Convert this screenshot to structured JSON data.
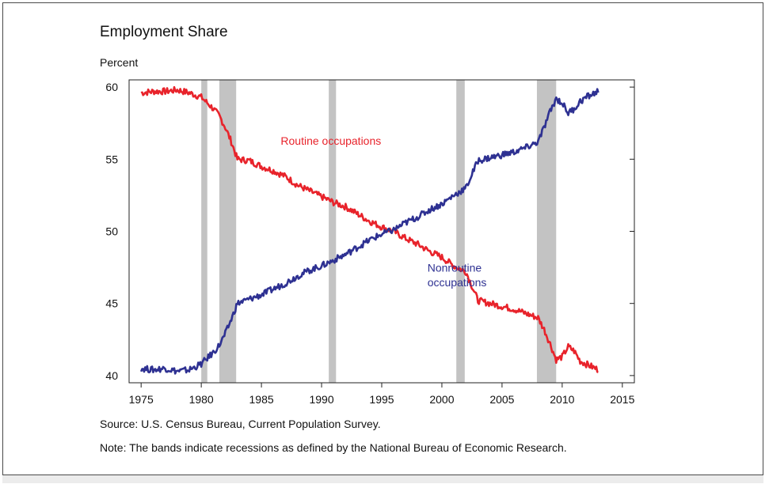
{
  "chart_data": {
    "type": "line",
    "title": "Employment Share",
    "ylabel": "Percent",
    "xlabel": "",
    "xlim": [
      1974,
      2016
    ],
    "ylim": [
      39.5,
      60.5
    ],
    "xticks": [
      1975,
      1980,
      1985,
      1990,
      1995,
      2000,
      2005,
      2010,
      2015
    ],
    "yticks": [
      40,
      45,
      50,
      55,
      60
    ],
    "recessions": [
      [
        1980.0,
        1980.5
      ],
      [
        1981.5,
        1982.9
      ],
      [
        1990.6,
        1991.2
      ],
      [
        2001.2,
        2001.9
      ],
      [
        2007.9,
        2009.5
      ]
    ],
    "series": [
      {
        "name": "Routine occupations",
        "color": "#e8232b",
        "x": [
          1975.0,
          1976.0,
          1977.0,
          1978.0,
          1979.0,
          1980.0,
          1980.5,
          1981.0,
          1981.5,
          1982.0,
          1982.5,
          1983.0,
          1984.0,
          1985.0,
          1986.0,
          1987.0,
          1988.0,
          1989.0,
          1990.0,
          1991.0,
          1992.0,
          1993.0,
          1994.0,
          1995.0,
          1996.0,
          1997.0,
          1998.0,
          1999.0,
          2000.0,
          2001.0,
          2002.0,
          2003.0,
          2004.0,
          2005.0,
          2006.0,
          2007.0,
          2008.0,
          2008.5,
          2009.0,
          2009.5,
          2010.0,
          2010.5,
          2011.0,
          2011.5,
          2012.0,
          2012.5,
          2013.0
        ],
        "values": [
          59.6,
          59.7,
          59.7,
          59.8,
          59.6,
          59.3,
          58.9,
          58.5,
          58.0,
          57.2,
          56.2,
          55.0,
          54.9,
          54.5,
          54.2,
          53.8,
          53.2,
          52.8,
          52.4,
          52.0,
          51.7,
          51.2,
          50.7,
          50.3,
          50.0,
          49.5,
          49.1,
          48.6,
          48.2,
          47.6,
          47.2,
          45.2,
          45.0,
          44.8,
          44.6,
          44.3,
          44.0,
          43.2,
          42.2,
          41.1,
          41.3,
          42.0,
          41.7,
          41.0,
          40.8,
          40.6,
          40.4
        ]
      },
      {
        "name": "Nonroutine occupations",
        "color": "#2e3192",
        "x": [
          1975.0,
          1976.0,
          1977.0,
          1978.0,
          1979.0,
          1980.0,
          1980.5,
          1981.0,
          1981.5,
          1982.0,
          1982.5,
          1983.0,
          1984.0,
          1985.0,
          1986.0,
          1987.0,
          1988.0,
          1989.0,
          1990.0,
          1991.0,
          1992.0,
          1993.0,
          1994.0,
          1995.0,
          1996.0,
          1997.0,
          1998.0,
          1999.0,
          2000.0,
          2001.0,
          2002.0,
          2003.0,
          2004.0,
          2005.0,
          2006.0,
          2007.0,
          2008.0,
          2008.5,
          2009.0,
          2009.5,
          2010.0,
          2010.5,
          2011.0,
          2011.5,
          2012.0,
          2012.5,
          2013.0
        ],
        "values": [
          40.5,
          40.4,
          40.5,
          40.3,
          40.4,
          40.8,
          41.2,
          41.6,
          42.1,
          42.9,
          43.9,
          45.0,
          45.3,
          45.6,
          46.0,
          46.4,
          46.9,
          47.3,
          47.6,
          48.0,
          48.4,
          48.9,
          49.4,
          49.8,
          50.1,
          50.6,
          51.0,
          51.5,
          51.9,
          52.5,
          53.0,
          54.9,
          55.1,
          55.3,
          55.5,
          55.8,
          56.2,
          57.2,
          58.3,
          59.2,
          58.9,
          58.2,
          58.5,
          59.0,
          59.3,
          59.5,
          59.7
        ]
      }
    ],
    "annotations": [
      {
        "text": "Routine occupations",
        "x": 1986.6,
        "y": 56.0,
        "color": "#e8232b"
      },
      {
        "text": "Nonroutine occupations",
        "x": 1998.8,
        "y": 47.2,
        "color": "#2e3192"
      },
      {
        "text": "",
        "x": 1998.8,
        "y": 46.2,
        "color": "#2e3192"
      }
    ],
    "recession_color": "#c3c3c3"
  },
  "labels": {
    "title": "Employment Share",
    "yunit": "Percent",
    "source": "Source: U.S. Census Bureau, Current Population Survey.",
    "note": "Note: The bands indicate recessions as defined by the National Bureau of Economic Research.",
    "nonroutine_line1": "Nonroutine",
    "nonroutine_line2": "occupations",
    "routine_label": "Routine occupations"
  }
}
